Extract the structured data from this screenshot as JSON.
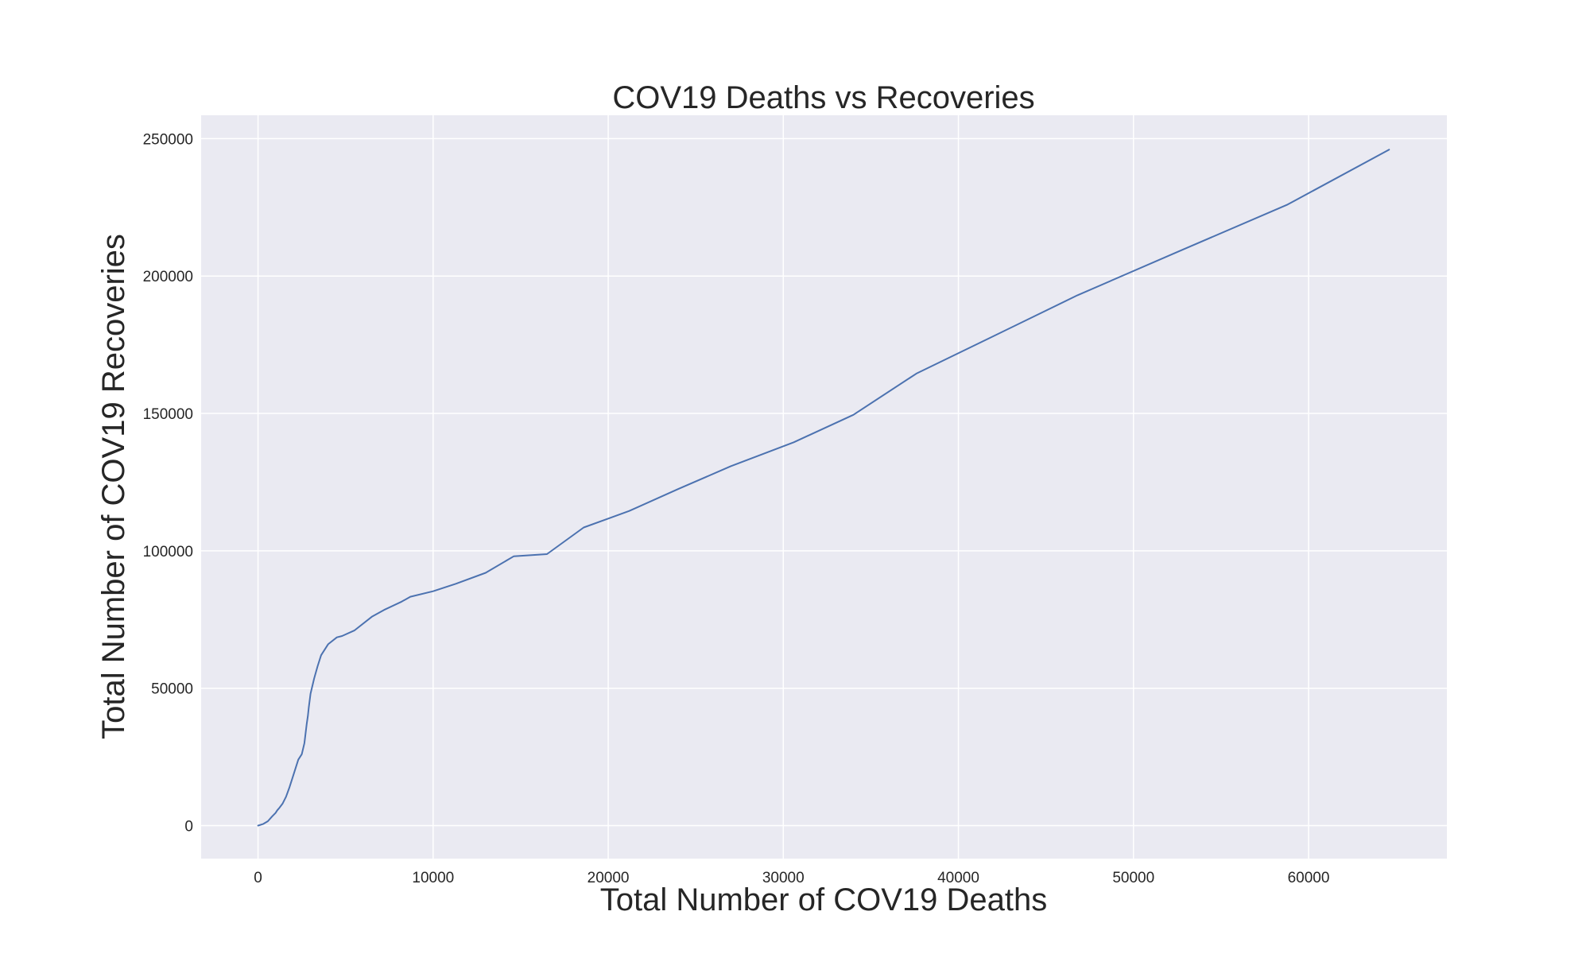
{
  "chart_data": {
    "type": "line",
    "title": "COV19 Deaths vs Recoveries",
    "xlabel": "Total Number of COV19 Deaths",
    "ylabel": "Total Number of COV19 Recoveries",
    "xlim": [
      -3250,
      67900
    ],
    "ylim": [
      -12000,
      258500
    ],
    "xticks": [
      0,
      10000,
      20000,
      30000,
      40000,
      50000,
      60000
    ],
    "yticks": [
      0,
      50000,
      100000,
      150000,
      200000,
      250000
    ],
    "grid": true,
    "series": [
      {
        "color": "#4c72b0",
        "x": [
          0,
          300,
          560,
          800,
          1000,
          1100,
          1200,
          1400,
          1600,
          1800,
          2000,
          2300,
          2500,
          2650,
          2780,
          2850,
          2900,
          3000,
          3200,
          3400,
          3600,
          4000,
          4500,
          4800,
          5500,
          6500,
          7200,
          8200,
          8700,
          10000,
          11300,
          13000,
          14600,
          16500,
          18600,
          21200,
          24000,
          27000,
          30600,
          34000,
          37600,
          41800,
          46800,
          52600,
          58800,
          64600
        ],
        "y": [
          0,
          600,
          1600,
          3300,
          4600,
          5600,
          6300,
          8000,
          10500,
          14000,
          18000,
          24000,
          26000,
          30000,
          37000,
          40000,
          43000,
          48000,
          53500,
          58000,
          62000,
          66000,
          68500,
          69000,
          71000,
          76000,
          78500,
          81500,
          83300,
          85300,
          88000,
          92000,
          98000,
          98800,
          108500,
          114500,
          122500,
          130800,
          139500,
          149500,
          164500,
          177500,
          193000,
          209000,
          226000,
          246000
        ]
      }
    ]
  }
}
